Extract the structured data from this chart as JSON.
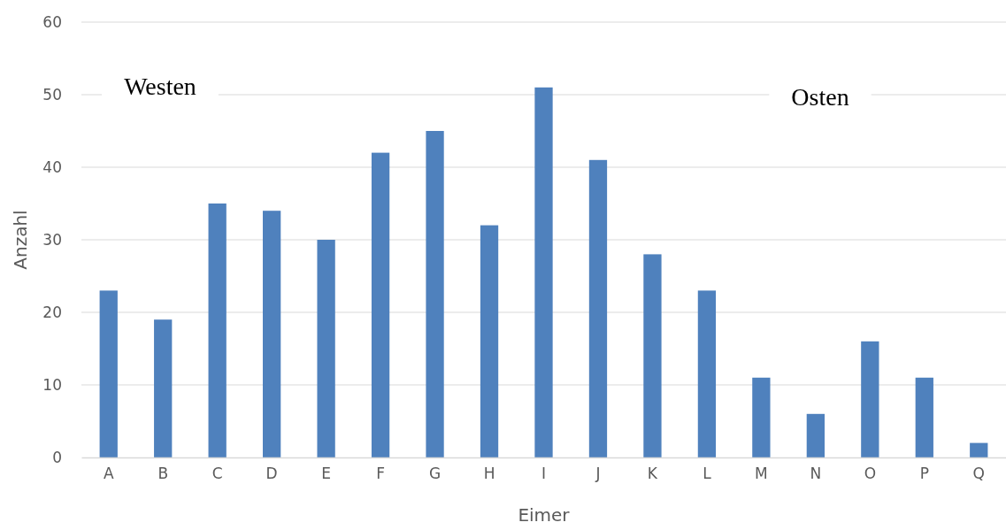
{
  "chart_data": {
    "type": "bar",
    "xlabel": "Eimer",
    "ylabel": "Anzahl",
    "categories": [
      "A",
      "B",
      "C",
      "D",
      "E",
      "F",
      "G",
      "H",
      "I",
      "J",
      "K",
      "L",
      "M",
      "N",
      "O",
      "P",
      "Q"
    ],
    "values": [
      23,
      19,
      35,
      34,
      30,
      42,
      45,
      32,
      51,
      41,
      28,
      23,
      11,
      6,
      16,
      11,
      2
    ],
    "color": "#4f81bd",
    "ylim": [
      0,
      60
    ],
    "yticks": [
      0,
      10,
      20,
      30,
      40,
      50,
      60
    ],
    "grid": "y",
    "annotations": [
      "Westen",
      "Osten"
    ]
  }
}
